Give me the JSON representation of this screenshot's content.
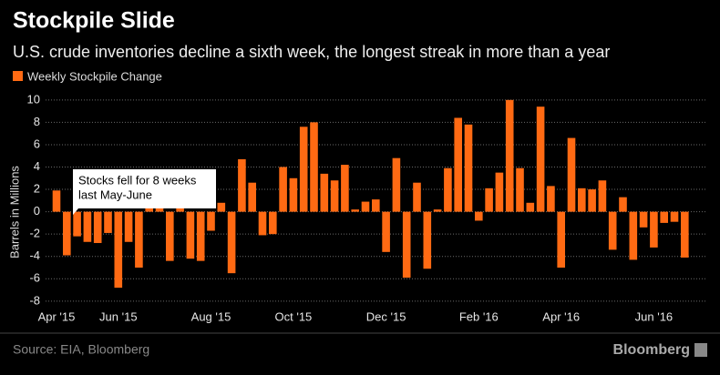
{
  "chart_data": {
    "type": "bar",
    "title": "Stockpile Slide",
    "subtitle": "U.S. crude inventories decline a sixth week, the longest streak in more than a year",
    "y_label": "Barrels in Millions",
    "source": "Source: EIA, Bloomberg",
    "brand": "Bloomberg",
    "annotation": [
      "Stocks fell for 8 weeks",
      "last May-June"
    ],
    "categories": [
      "Apr '15",
      null,
      null,
      null,
      null,
      null,
      "Jun '15",
      null,
      null,
      null,
      null,
      null,
      null,
      null,
      null,
      "Aug '15",
      null,
      null,
      null,
      null,
      null,
      null,
      null,
      "Oct '15",
      null,
      null,
      null,
      null,
      null,
      null,
      null,
      null,
      "Dec '15",
      null,
      null,
      null,
      null,
      null,
      null,
      null,
      null,
      "Feb '16",
      null,
      null,
      null,
      null,
      null,
      null,
      null,
      "Apr '16",
      null,
      null,
      null,
      null,
      null,
      null,
      null,
      null,
      "Jun '16",
      null,
      null,
      null
    ],
    "series": [
      {
        "name": "Weekly Stockpile Change",
        "color": "#ff6a13",
        "values": [
          1.9,
          -3.9,
          -2.2,
          -2.7,
          -2.8,
          -1.9,
          -6.8,
          -2.7,
          -5.0,
          0.4,
          0.4,
          -4.4,
          0.4,
          -4.2,
          -4.4,
          -1.7,
          0.8,
          -5.5,
          4.7,
          2.6,
          -2.1,
          -2.0,
          4.0,
          3.0,
          7.6,
          8.0,
          3.4,
          2.8,
          4.2,
          0.2,
          0.9,
          1.1,
          -3.6,
          4.8,
          -5.9,
          2.6,
          -5.1,
          0.2,
          3.9,
          8.4,
          7.8,
          -0.8,
          2.1,
          3.5,
          10.0,
          3.9,
          0.8,
          9.4,
          2.3,
          -5.0,
          6.6,
          2.1,
          2.0,
          2.8,
          -3.4,
          1.3,
          -4.3,
          -1.4,
          -3.2,
          -1.0,
          -0.9,
          -4.1
        ]
      }
    ],
    "ylim": [
      -8.5,
      10.8
    ],
    "yticks": [
      -8,
      -6,
      -4,
      -2,
      0,
      2,
      4,
      6,
      8,
      10
    ],
    "grid": true
  }
}
